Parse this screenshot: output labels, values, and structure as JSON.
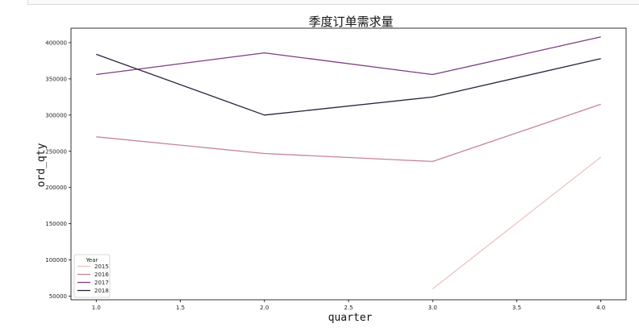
{
  "chart_data": {
    "type": "line",
    "title": "季度订单需求量",
    "xlabel": "quarter",
    "ylabel": "ord_qty",
    "xlim": [
      0.85,
      4.15
    ],
    "ylim": [
      45000,
      420000
    ],
    "x_ticks": [
      1.0,
      1.5,
      2.0,
      2.5,
      3.0,
      3.5,
      4.0
    ],
    "x_tick_labels": [
      "1.0",
      "1.5",
      "2.0",
      "2.5",
      "3.0",
      "3.5",
      "4.0"
    ],
    "y_ticks": [
      50000,
      100000,
      150000,
      200000,
      250000,
      300000,
      350000,
      400000
    ],
    "y_tick_labels": [
      "50000",
      "100000",
      "150000",
      "200000",
      "250000",
      "300000",
      "350000",
      "400000"
    ],
    "grid": false,
    "legend": {
      "title": "Year",
      "placement": "lower-left"
    },
    "series": [
      {
        "name": "2015",
        "color": "#ecc5c2",
        "x": [
          3.0,
          4.0
        ],
        "y": [
          60000,
          242000
        ]
      },
      {
        "name": "2016",
        "color": "#c88396",
        "x": [
          1.0,
          2.0,
          3.0,
          4.0
        ],
        "y": [
          270000,
          247000,
          236000,
          315000
        ]
      },
      {
        "name": "2017",
        "color": "#7b3c80",
        "x": [
          1.0,
          2.0,
          3.0,
          4.0
        ],
        "y": [
          356000,
          386000,
          356000,
          408000
        ]
      },
      {
        "name": "2018",
        "color": "#2b1f3d",
        "x": [
          1.0,
          2.0,
          3.0,
          4.0
        ],
        "y": [
          384000,
          300000,
          325000,
          378000
        ]
      }
    ]
  }
}
